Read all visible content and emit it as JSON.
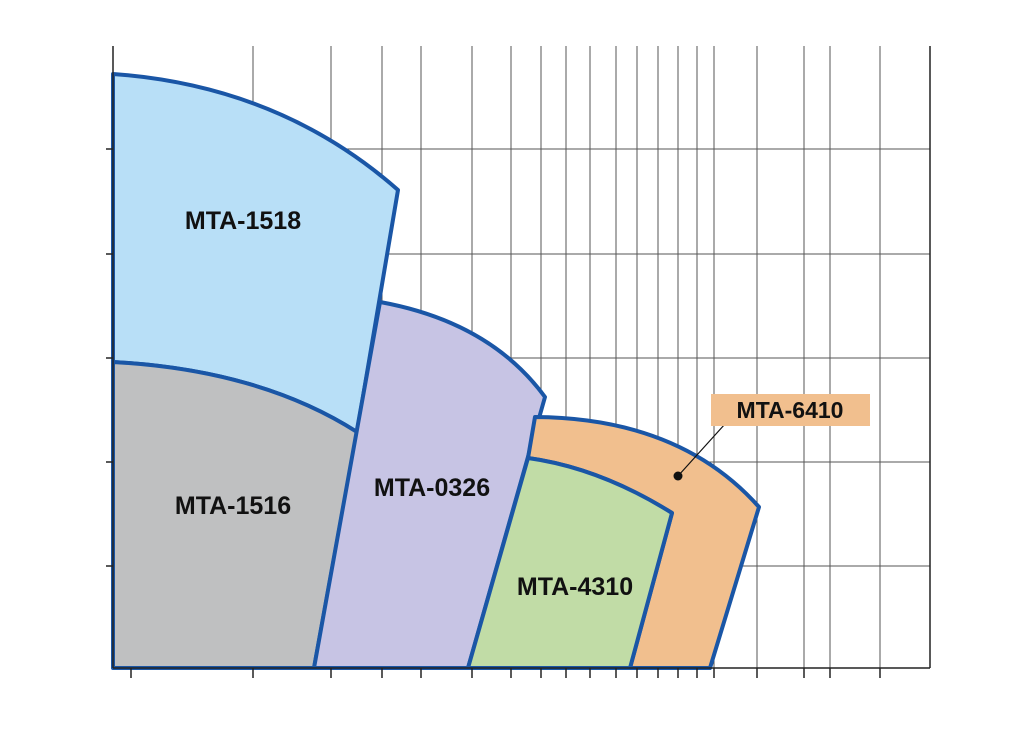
{
  "regions": [
    {
      "id": "mta-1518",
      "label": "MTA-1518",
      "color": "#b8dff7"
    },
    {
      "id": "mta-1516",
      "label": "MTA-1516",
      "color": "#bfc0c1"
    },
    {
      "id": "mta-0326",
      "label": "MTA-0326",
      "color": "#c7c4e4"
    },
    {
      "id": "mta-6410",
      "label": "MTA-6410",
      "color": "#f1bf8e"
    },
    {
      "id": "mta-4310",
      "label": "MTA-4310",
      "color": "#c1dca6"
    }
  ],
  "callout": {
    "label": "MTA-6410",
    "color": "#f1bf8e"
  },
  "outline_color": "#1a56a6"
}
